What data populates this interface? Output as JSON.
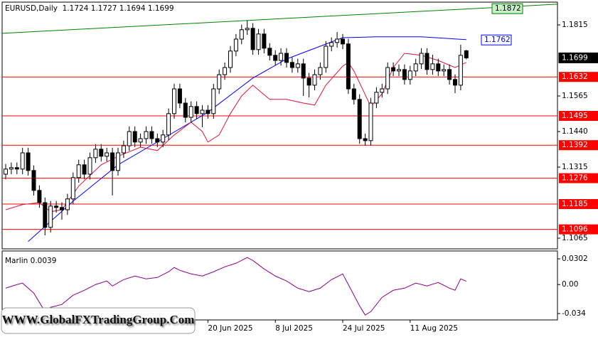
{
  "chart_data": [
    {
      "type": "candlestick",
      "title": "EURUSD,Daily  1.1724 1.1727 1.1694 1.1699",
      "categories": [
        null,
        null,
        null,
        null,
        null,
        null,
        null,
        null,
        null,
        null,
        null,
        null,
        null,
        null,
        null,
        null,
        null,
        null,
        null,
        null,
        null,
        null,
        null,
        null,
        null,
        null,
        null,
        null,
        null,
        null,
        null,
        null,
        null,
        null,
        null,
        null,
        "20 Jun 2025",
        null,
        null,
        null,
        null,
        null,
        null,
        null,
        null,
        null,
        null,
        null,
        "8 Jul 2025",
        null,
        null,
        null,
        null,
        null,
        null,
        null,
        null,
        null,
        null,
        null,
        "24 Jul 2025",
        null,
        null,
        null,
        null,
        null,
        null,
        null,
        null,
        null,
        null,
        null,
        "11 Aug 2025",
        null,
        null,
        null,
        null,
        null,
        null,
        null,
        null,
        null,
        null
      ],
      "open": [
        1.129,
        1.1308,
        1.1313,
        1.1308,
        1.1365,
        1.1303,
        1.1233,
        1.119,
        1.1103,
        1.1178,
        1.1173,
        1.1165,
        1.1203,
        1.1278,
        1.1323,
        1.129,
        1.1348,
        1.1378,
        1.1353,
        1.1365,
        1.1303,
        1.1365,
        1.139,
        1.144,
        1.1403,
        1.1415,
        1.144,
        1.1415,
        1.1403,
        1.1428,
        1.1503,
        1.159,
        1.154,
        1.149,
        1.1528,
        1.1503,
        1.1515,
        1.1503,
        1.159,
        1.164,
        1.1665,
        1.1723,
        1.1765,
        1.1798,
        1.1803,
        1.1728,
        1.1783,
        1.1733,
        1.1708,
        1.169,
        1.1715,
        1.1683,
        1.1665,
        1.1678,
        1.1628,
        1.1603,
        1.164,
        1.1665,
        1.174,
        1.1753,
        1.1765,
        1.1748,
        1.159,
        1.1553,
        1.1415,
        1.1408,
        1.154,
        1.1578,
        1.159,
        1.1665,
        1.1653,
        1.1658,
        1.1623,
        1.1653,
        1.1678,
        1.1715,
        1.1658,
        1.1678,
        1.1653,
        1.1658,
        1.1623,
        1.1603,
        1.1724
      ],
      "high": [
        1.1326,
        1.1331,
        1.1331,
        1.1383,
        1.1383,
        1.1321,
        1.1251,
        1.1208,
        1.1196,
        1.1196,
        1.1191,
        1.1221,
        1.1296,
        1.1341,
        1.1341,
        1.1366,
        1.1396,
        1.1396,
        1.1383,
        1.1383,
        1.1383,
        1.1408,
        1.1458,
        1.1458,
        1.1433,
        1.1458,
        1.1458,
        1.1433,
        1.1446,
        1.1521,
        1.1608,
        1.1608,
        1.1558,
        1.1546,
        1.1546,
        1.1533,
        1.1533,
        1.1608,
        1.1658,
        1.1683,
        1.1741,
        1.1783,
        1.1816,
        1.183,
        1.1821,
        1.1801,
        1.1801,
        1.1751,
        1.1726,
        1.1733,
        1.1733,
        1.1701,
        1.1696,
        1.1696,
        1.1646,
        1.1658,
        1.1683,
        1.1758,
        1.1771,
        1.179,
        1.1783,
        1.1766,
        1.1608,
        1.1571,
        1.1433,
        1.1558,
        1.1596,
        1.1608,
        1.1683,
        1.1683,
        1.1676,
        1.1676,
        1.1671,
        1.1696,
        1.1733,
        1.1733,
        1.171,
        1.1696,
        1.1676,
        1.1676,
        1.1641,
        1.1745,
        1.1727
      ],
      "low": [
        1.1272,
        1.129,
        1.129,
        1.129,
        1.1285,
        1.1215,
        1.1172,
        1.1075,
        1.1085,
        1.1155,
        1.113,
        1.1147,
        1.1185,
        1.126,
        1.1272,
        1.1272,
        1.133,
        1.1335,
        1.1335,
        1.1215,
        1.1285,
        1.1347,
        1.1372,
        1.1385,
        1.1385,
        1.1397,
        1.1397,
        1.1385,
        1.1385,
        1.141,
        1.1485,
        1.1522,
        1.1472,
        1.1472,
        1.1485,
        1.1455,
        1.1485,
        1.1485,
        1.1572,
        1.1622,
        1.1647,
        1.1705,
        1.1747,
        1.178,
        1.171,
        1.171,
        1.1715,
        1.169,
        1.1672,
        1.1672,
        1.1665,
        1.1647,
        1.1647,
        1.1565,
        1.156,
        1.1585,
        1.1622,
        1.1647,
        1.1722,
        1.1735,
        1.173,
        1.1572,
        1.1535,
        1.1397,
        1.139,
        1.139,
        1.1522,
        1.156,
        1.1572,
        1.1635,
        1.1635,
        1.1605,
        1.1605,
        1.1635,
        1.166,
        1.164,
        1.164,
        1.1635,
        1.1635,
        1.1605,
        1.1575,
        1.1585,
        1.1694
      ],
      "close": [
        1.1308,
        1.1313,
        1.1308,
        1.1365,
        1.1303,
        1.1233,
        1.119,
        1.1103,
        1.1178,
        1.1173,
        1.1165,
        1.1203,
        1.1278,
        1.1323,
        1.129,
        1.1348,
        1.1378,
        1.1353,
        1.1365,
        1.1303,
        1.1365,
        1.139,
        1.144,
        1.1403,
        1.1415,
        1.144,
        1.1415,
        1.1403,
        1.1428,
        1.1503,
        1.159,
        1.154,
        1.149,
        1.1528,
        1.1503,
        1.1515,
        1.1503,
        1.159,
        1.164,
        1.1665,
        1.1723,
        1.1765,
        1.1798,
        1.1803,
        1.1728,
        1.1783,
        1.1733,
        1.1708,
        1.169,
        1.1715,
        1.1683,
        1.1665,
        1.1678,
        1.1628,
        1.1603,
        1.164,
        1.1665,
        1.174,
        1.1753,
        1.1765,
        1.1748,
        1.159,
        1.1553,
        1.1415,
        1.1408,
        1.154,
        1.1578,
        1.159,
        1.1665,
        1.1653,
        1.1658,
        1.1623,
        1.1653,
        1.1678,
        1.1715,
        1.1658,
        1.1678,
        1.1653,
        1.1658,
        1.1623,
        1.1603,
        1.1708,
        1.1699
      ],
      "lines": [
        {
          "color": "#0000ff",
          "x": [
            4,
            12,
            20,
            28,
            36,
            44,
            50,
            56,
            60,
            66,
            74,
            82
          ],
          "values": [
            1.1053,
            1.1195,
            1.1323,
            1.1415,
            1.1508,
            1.1628,
            1.1695,
            1.174,
            1.177,
            1.1773,
            1.1773,
            1.1763
          ]
        },
        {
          "color": "#dc143c",
          "x": [
            0,
            3,
            6,
            8,
            10,
            13,
            17,
            20,
            24,
            27,
            30,
            33,
            35,
            36,
            38,
            40,
            42,
            44,
            47,
            50,
            53,
            55,
            57,
            60,
            61,
            62,
            65,
            67,
            69,
            71,
            74,
            77,
            80,
            82
          ],
          "values": [
            1.1165,
            1.1183,
            1.119,
            1.1158,
            1.1165,
            1.1248,
            1.1323,
            1.1353,
            1.1385,
            1.1373,
            1.1428,
            1.1473,
            1.144,
            1.1403,
            1.1428,
            1.1503,
            1.1565,
            1.1603,
            1.1553,
            1.1553,
            1.154,
            1.1533,
            1.1603,
            1.167,
            1.1683,
            1.1653,
            1.1528,
            1.1573,
            1.1665,
            1.1715,
            1.1708,
            1.169,
            1.1665,
            1.1683
          ]
        },
        {
          "color": "#008000",
          "x": [
            0,
            82
          ],
          "values": [
            1.1786,
            1.1871
          ]
        }
      ],
      "levels": [
        1.1632,
        1.1495,
        1.1392,
        1.1276,
        1.1185,
        1.1096
      ],
      "level_color": "#ff0000",
      "price_labels": [
        {
          "value": 1.1872,
          "color": "#008000"
        },
        {
          "value": 1.1762,
          "color": "#0000ff"
        },
        {
          "value": 1.1699,
          "color": "#000000"
        }
      ],
      "ylim": [
        1.10275,
        1.1895
      ],
      "yticks": [
        1.1815,
        1.1565,
        {
          "value": 1.144,
          "label": "1.1440"
        },
        1.1315,
        1.1065
      ],
      "grid": false
    },
    {
      "type": "line",
      "title": "Marlin 0.0039",
      "color": "#8b008b",
      "x": [
        0,
        2,
        3,
        5,
        6,
        7,
        8,
        10,
        12,
        14,
        16,
        18,
        19,
        21,
        23,
        25,
        27,
        29,
        30,
        31,
        33,
        35,
        37,
        39,
        41,
        43,
        44,
        46,
        48,
        50,
        52,
        54,
        56,
        58,
        60,
        61,
        63,
        64,
        65,
        67,
        69,
        71,
        73,
        75,
        77,
        79,
        80,
        81,
        82
      ],
      "values": [
        -0.0042,
        0,
        0.0017,
        -0.01,
        -0.0208,
        -0.0317,
        -0.0267,
        -0.0233,
        -0.0125,
        -0.0067,
        0,
        0.0042,
        -0.0017,
        0.0058,
        0.01,
        0.0067,
        0.0083,
        0.015,
        0.02,
        0.0167,
        0.0125,
        0.01,
        0.015,
        0.0208,
        0.025,
        0.0317,
        0.0283,
        0.0183,
        0.01,
        0.0042,
        -0.0042,
        -0.0083,
        -0.0042,
        0.0058,
        0.0125,
        0,
        -0.025,
        -0.0358,
        -0.0317,
        -0.015,
        -0.0067,
        -0.0042,
        0.0017,
        -0.0017,
        0.0025,
        -0.0042,
        -0.0067,
        0.0067,
        0.0039
      ],
      "ylim": [
        -0.0415,
        0.0394
      ],
      "yticks": [
        0.0302,
        {
          "value": 0,
          "label": "0.00"
        },
        -0.034
      ]
    }
  ],
  "watermark": "WWW.GlobalFXTradingGroup.Com"
}
